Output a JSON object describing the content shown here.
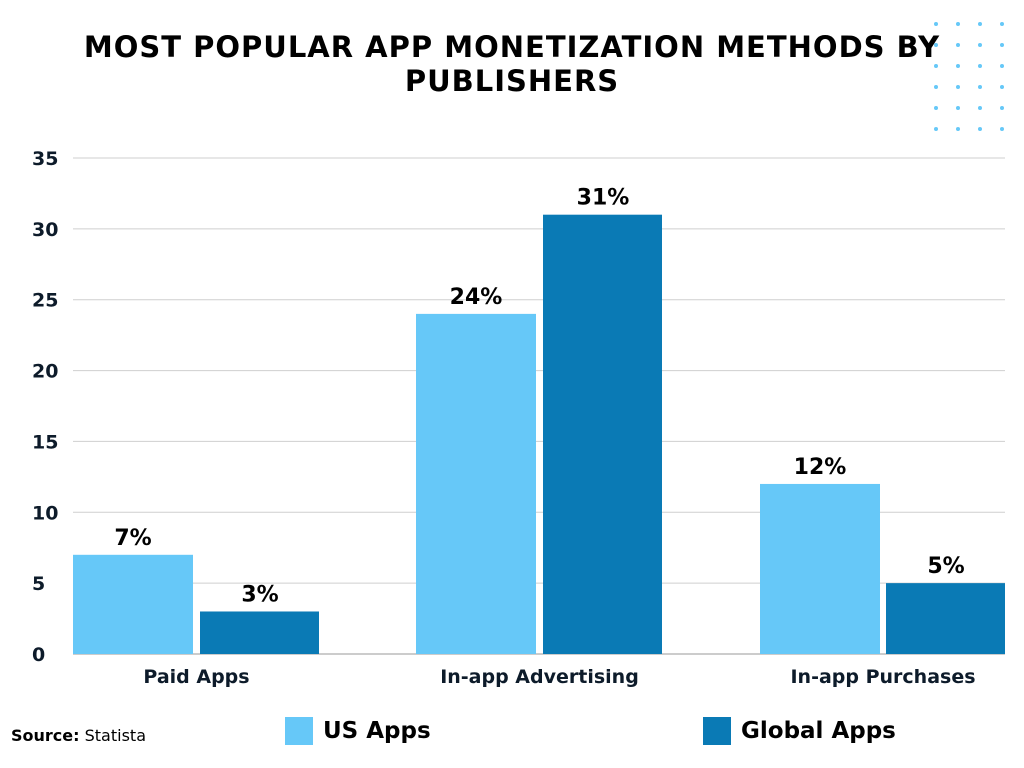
{
  "chart_data": {
    "type": "bar",
    "title": "MOST POPULAR APP MONETIZATION METHODS BY PUBLISHERS",
    "categories": [
      "Paid Apps",
      "In-app Advertising",
      "In-app Purchases"
    ],
    "series": [
      {
        "name": "US Apps",
        "values": [
          7,
          24,
          12
        ],
        "labels": [
          "7%",
          "24%",
          "12%"
        ],
        "color": "#66c8f8"
      },
      {
        "name": "Global Apps",
        "values": [
          3,
          31,
          5
        ],
        "labels": [
          "3%",
          "31%",
          "5%"
        ],
        "color": "#0a7ab5"
      }
    ],
    "ylim": [
      0,
      35
    ],
    "yticks": [
      0,
      5,
      10,
      15,
      20,
      25,
      30,
      35
    ],
    "grid": true,
    "legend": "bottom",
    "xlabel": "",
    "ylabel": ""
  },
  "source": {
    "label": "Source:",
    "value": "Statista"
  },
  "decoration": {
    "dot_color": "#66c8f8"
  }
}
